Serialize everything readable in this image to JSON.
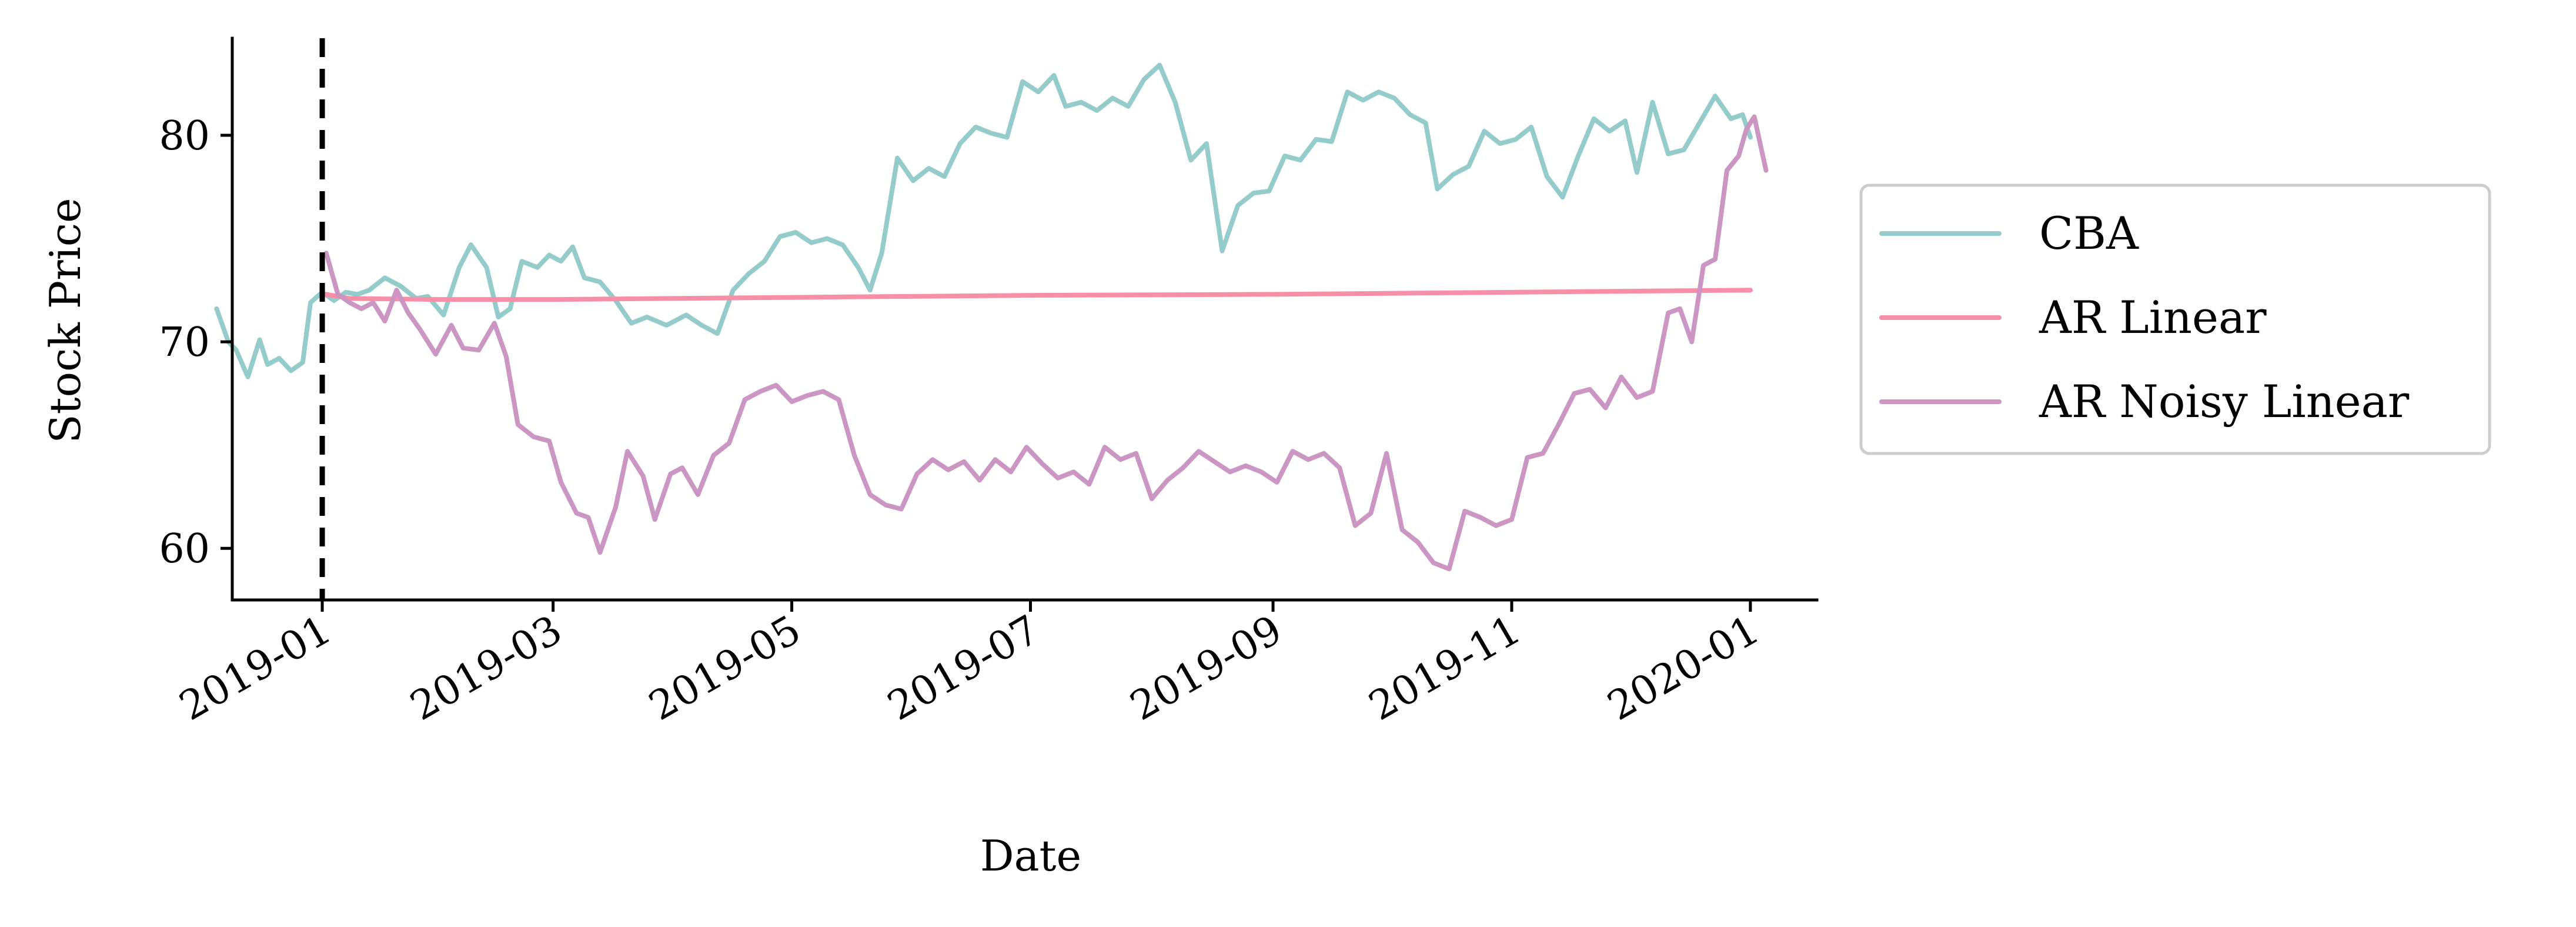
{
  "chart_data": {
    "type": "line",
    "title": "",
    "xlabel": "Date",
    "ylabel": "Stock Price",
    "xlim": [
      "2018-12-09",
      "2020-01-18"
    ],
    "ylim": [
      57.5,
      84.7
    ],
    "x_ticks": [
      "2019-01",
      "2019-03",
      "2019-05",
      "2019-07",
      "2019-09",
      "2019-11",
      "2020-01"
    ],
    "y_ticks": [
      60,
      70,
      80
    ],
    "vline": "2019-01-01",
    "grid": false,
    "legend": "right",
    "series": [
      {
        "name": "CBA",
        "color": "#93cccb",
        "points": [
          [
            "2018-12-05",
            71.6
          ],
          [
            "2018-12-08",
            70.0
          ],
          [
            "2018-12-10",
            69.6
          ],
          [
            "2018-12-13",
            68.3
          ],
          [
            "2018-12-16",
            70.1
          ],
          [
            "2018-12-18",
            68.9
          ],
          [
            "2018-12-21",
            69.2
          ],
          [
            "2018-12-24",
            68.6
          ],
          [
            "2018-12-27",
            69.0
          ],
          [
            "2018-12-29",
            71.9
          ],
          [
            "2019-01-01",
            72.4
          ],
          [
            "2019-01-04",
            72.0
          ],
          [
            "2019-01-07",
            72.4
          ],
          [
            "2019-01-10",
            72.3
          ],
          [
            "2019-01-13",
            72.5
          ],
          [
            "2019-01-17",
            73.1
          ],
          [
            "2019-01-21",
            72.7
          ],
          [
            "2019-01-25",
            72.1
          ],
          [
            "2019-01-28",
            72.2
          ],
          [
            "2019-02-01",
            71.3
          ],
          [
            "2019-02-05",
            73.6
          ],
          [
            "2019-02-08",
            74.7
          ],
          [
            "2019-02-12",
            73.6
          ],
          [
            "2019-02-15",
            71.2
          ],
          [
            "2019-02-18",
            71.6
          ],
          [
            "2019-02-21",
            73.9
          ],
          [
            "2019-02-25",
            73.6
          ],
          [
            "2019-02-28",
            74.2
          ],
          [
            "2019-03-03",
            73.9
          ],
          [
            "2019-03-06",
            74.6
          ],
          [
            "2019-03-09",
            73.1
          ],
          [
            "2019-03-13",
            72.9
          ],
          [
            "2019-03-17",
            72.0
          ],
          [
            "2019-03-21",
            70.9
          ],
          [
            "2019-03-25",
            71.2
          ],
          [
            "2019-03-30",
            70.8
          ],
          [
            "2019-04-04",
            71.3
          ],
          [
            "2019-04-08",
            70.8
          ],
          [
            "2019-04-12",
            70.4
          ],
          [
            "2019-04-16",
            72.5
          ],
          [
            "2019-04-20",
            73.3
          ],
          [
            "2019-04-24",
            73.9
          ],
          [
            "2019-04-28",
            75.1
          ],
          [
            "2019-05-02",
            75.3
          ],
          [
            "2019-05-06",
            74.8
          ],
          [
            "2019-05-10",
            75.0
          ],
          [
            "2019-05-14",
            74.7
          ],
          [
            "2019-05-18",
            73.6
          ],
          [
            "2019-05-21",
            72.5
          ],
          [
            "2019-05-24",
            74.3
          ],
          [
            "2019-05-28",
            78.9
          ],
          [
            "2019-06-01",
            77.8
          ],
          [
            "2019-06-05",
            78.4
          ],
          [
            "2019-06-09",
            78.0
          ],
          [
            "2019-06-13",
            79.6
          ],
          [
            "2019-06-17",
            80.4
          ],
          [
            "2019-06-21",
            80.1
          ],
          [
            "2019-06-25",
            79.9
          ],
          [
            "2019-06-29",
            82.6
          ],
          [
            "2019-07-03",
            82.1
          ],
          [
            "2019-07-07",
            82.9
          ],
          [
            "2019-07-10",
            81.4
          ],
          [
            "2019-07-14",
            81.6
          ],
          [
            "2019-07-18",
            81.2
          ],
          [
            "2019-07-22",
            81.8
          ],
          [
            "2019-07-26",
            81.4
          ],
          [
            "2019-07-30",
            82.7
          ],
          [
            "2019-08-03",
            83.4
          ],
          [
            "2019-08-07",
            81.6
          ],
          [
            "2019-08-11",
            78.8
          ],
          [
            "2019-08-15",
            79.6
          ],
          [
            "2019-08-19",
            74.4
          ],
          [
            "2019-08-23",
            76.6
          ],
          [
            "2019-08-27",
            77.2
          ],
          [
            "2019-08-31",
            77.3
          ],
          [
            "2019-09-04",
            79.0
          ],
          [
            "2019-09-08",
            78.8
          ],
          [
            "2019-09-12",
            79.8
          ],
          [
            "2019-09-16",
            79.7
          ],
          [
            "2019-09-20",
            82.1
          ],
          [
            "2019-09-24",
            81.7
          ],
          [
            "2019-09-28",
            82.1
          ],
          [
            "2019-10-02",
            81.8
          ],
          [
            "2019-10-06",
            81.0
          ],
          [
            "2019-10-10",
            80.6
          ],
          [
            "2019-10-13",
            77.4
          ],
          [
            "2019-10-17",
            78.1
          ],
          [
            "2019-10-21",
            78.5
          ],
          [
            "2019-10-25",
            80.2
          ],
          [
            "2019-10-29",
            79.6
          ],
          [
            "2019-11-02",
            79.8
          ],
          [
            "2019-11-06",
            80.4
          ],
          [
            "2019-11-10",
            78.0
          ],
          [
            "2019-11-14",
            77.0
          ],
          [
            "2019-11-18",
            79.0
          ],
          [
            "2019-11-22",
            80.8
          ],
          [
            "2019-11-26",
            80.2
          ],
          [
            "2019-11-30",
            80.7
          ],
          [
            "2019-12-03",
            78.2
          ],
          [
            "2019-12-07",
            81.6
          ],
          [
            "2019-12-11",
            79.1
          ],
          [
            "2019-12-15",
            79.3
          ],
          [
            "2019-12-19",
            80.6
          ],
          [
            "2019-12-23",
            81.9
          ],
          [
            "2019-12-27",
            80.8
          ],
          [
            "2019-12-30",
            81.0
          ],
          [
            "2020-01-01",
            79.9
          ]
        ]
      },
      {
        "name": "AR Linear",
        "color": "#f78fa7",
        "points": [
          [
            "2019-01-02",
            72.3
          ],
          [
            "2019-01-08",
            72.1
          ],
          [
            "2019-01-31",
            72.05
          ],
          [
            "2019-03-01",
            72.05
          ],
          [
            "2019-05-01",
            72.15
          ],
          [
            "2019-07-01",
            72.25
          ],
          [
            "2019-09-01",
            72.3
          ],
          [
            "2019-11-01",
            72.4
          ],
          [
            "2020-01-01",
            72.5
          ]
        ]
      },
      {
        "name": "AR Noisy Linear",
        "color": "#cc96c4",
        "points": [
          [
            "2019-01-02",
            74.3
          ],
          [
            "2019-01-05",
            72.3
          ],
          [
            "2019-01-08",
            71.9
          ],
          [
            "2019-01-11",
            71.6
          ],
          [
            "2019-01-14",
            71.9
          ],
          [
            "2019-01-17",
            71.0
          ],
          [
            "2019-01-20",
            72.5
          ],
          [
            "2019-01-23",
            71.4
          ],
          [
            "2019-01-26",
            70.6
          ],
          [
            "2019-01-30",
            69.4
          ],
          [
            "2019-02-03",
            70.8
          ],
          [
            "2019-02-06",
            69.7
          ],
          [
            "2019-02-10",
            69.6
          ],
          [
            "2019-02-14",
            70.9
          ],
          [
            "2019-02-17",
            69.3
          ],
          [
            "2019-02-20",
            66.0
          ],
          [
            "2019-02-24",
            65.4
          ],
          [
            "2019-02-28",
            65.2
          ],
          [
            "2019-03-03",
            63.2
          ],
          [
            "2019-03-07",
            61.7
          ],
          [
            "2019-03-10",
            61.5
          ],
          [
            "2019-03-13",
            59.8
          ],
          [
            "2019-03-17",
            62.0
          ],
          [
            "2019-03-20",
            64.7
          ],
          [
            "2019-03-24",
            63.5
          ],
          [
            "2019-03-27",
            61.4
          ],
          [
            "2019-03-31",
            63.6
          ],
          [
            "2019-04-03",
            63.9
          ],
          [
            "2019-04-07",
            62.6
          ],
          [
            "2019-04-11",
            64.5
          ],
          [
            "2019-04-15",
            65.1
          ],
          [
            "2019-04-19",
            67.2
          ],
          [
            "2019-04-23",
            67.6
          ],
          [
            "2019-04-27",
            67.9
          ],
          [
            "2019-05-01",
            67.1
          ],
          [
            "2019-05-05",
            67.4
          ],
          [
            "2019-05-09",
            67.6
          ],
          [
            "2019-05-13",
            67.2
          ],
          [
            "2019-05-17",
            64.5
          ],
          [
            "2019-05-21",
            62.6
          ],
          [
            "2019-05-25",
            62.1
          ],
          [
            "2019-05-29",
            61.9
          ],
          [
            "2019-06-02",
            63.6
          ],
          [
            "2019-06-06",
            64.3
          ],
          [
            "2019-06-10",
            63.8
          ],
          [
            "2019-06-14",
            64.2
          ],
          [
            "2019-06-18",
            63.3
          ],
          [
            "2019-06-22",
            64.3
          ],
          [
            "2019-06-26",
            63.7
          ],
          [
            "2019-06-30",
            64.9
          ],
          [
            "2019-07-04",
            64.1
          ],
          [
            "2019-07-08",
            63.4
          ],
          [
            "2019-07-12",
            63.7
          ],
          [
            "2019-07-16",
            63.1
          ],
          [
            "2019-07-20",
            64.9
          ],
          [
            "2019-07-24",
            64.3
          ],
          [
            "2019-07-28",
            64.6
          ],
          [
            "2019-08-01",
            62.4
          ],
          [
            "2019-08-05",
            63.3
          ],
          [
            "2019-08-09",
            63.9
          ],
          [
            "2019-08-13",
            64.7
          ],
          [
            "2019-08-17",
            64.2
          ],
          [
            "2019-08-21",
            63.7
          ],
          [
            "2019-08-25",
            64.0
          ],
          [
            "2019-08-29",
            63.7
          ],
          [
            "2019-09-02",
            63.2
          ],
          [
            "2019-09-06",
            64.7
          ],
          [
            "2019-09-10",
            64.3
          ],
          [
            "2019-09-14",
            64.6
          ],
          [
            "2019-09-18",
            63.9
          ],
          [
            "2019-09-22",
            61.1
          ],
          [
            "2019-09-26",
            61.7
          ],
          [
            "2019-09-30",
            64.6
          ],
          [
            "2019-10-04",
            60.9
          ],
          [
            "2019-10-08",
            60.3
          ],
          [
            "2019-10-12",
            59.3
          ],
          [
            "2019-10-16",
            59.0
          ],
          [
            "2019-10-20",
            61.8
          ],
          [
            "2019-10-24",
            61.5
          ],
          [
            "2019-10-28",
            61.1
          ],
          [
            "2019-11-01",
            61.4
          ],
          [
            "2019-11-05",
            64.4
          ],
          [
            "2019-11-09",
            64.6
          ],
          [
            "2019-11-13",
            66.0
          ],
          [
            "2019-11-17",
            67.5
          ],
          [
            "2019-11-21",
            67.7
          ],
          [
            "2019-11-25",
            66.8
          ],
          [
            "2019-11-29",
            68.3
          ],
          [
            "2019-12-03",
            67.3
          ],
          [
            "2019-12-07",
            67.6
          ],
          [
            "2019-12-11",
            71.4
          ],
          [
            "2019-12-14",
            71.6
          ],
          [
            "2019-12-17",
            70.0
          ],
          [
            "2019-12-20",
            73.7
          ],
          [
            "2019-12-23",
            74.0
          ],
          [
            "2019-12-26",
            78.3
          ],
          [
            "2019-12-29",
            79.0
          ],
          [
            "2019-12-31",
            80.3
          ],
          [
            "2020-01-02",
            80.9
          ],
          [
            "2020-01-05",
            78.3
          ]
        ]
      }
    ]
  }
}
